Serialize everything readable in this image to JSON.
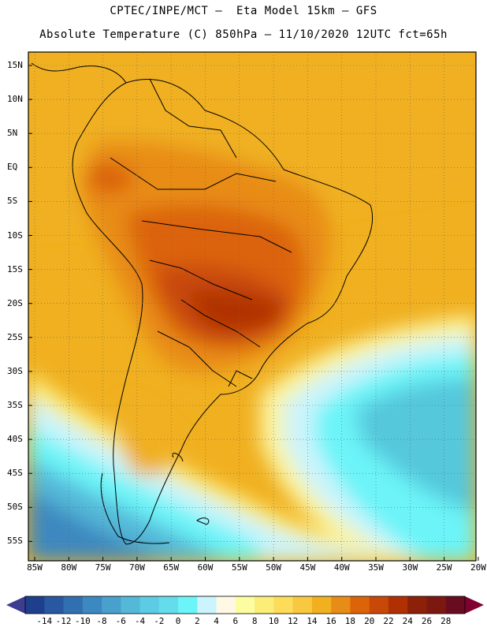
{
  "header": {
    "line1": "CPTEC/INPE/MCT –  Eta Model 15km – GFS",
    "line2": "Absolute Temperature (C) 850hPa – 11/10/2020 12UTC fct=65h"
  },
  "map": {
    "lat_labels": [
      "15N",
      "10N",
      "5N",
      "EQ",
      "5S",
      "10S",
      "15S",
      "20S",
      "25S",
      "30S",
      "35S",
      "40S",
      "45S",
      "50S",
      "55S"
    ],
    "lon_labels": [
      "85W",
      "80W",
      "75W",
      "70W",
      "65W",
      "60W",
      "55W",
      "50W",
      "45W",
      "40W",
      "35W",
      "30W",
      "25W",
      "20W"
    ]
  },
  "colorbar": {
    "labels": [
      "-14",
      "-12",
      "-10",
      "-8",
      "-6",
      "-4",
      "-2",
      "0",
      "2",
      "4",
      "6",
      "8",
      "10",
      "12",
      "14",
      "16",
      "18",
      "20",
      "22",
      "24",
      "26",
      "28"
    ],
    "colors": [
      "#1e3f8c",
      "#2858a0",
      "#3070b0",
      "#3c88c0",
      "#48a0cc",
      "#54b8d8",
      "#5ccce4",
      "#64dcec",
      "#6cf4f8",
      "#ccf4fc",
      "#fff8e4",
      "#fcfca0",
      "#fcec78",
      "#fcdc58",
      "#f8c840",
      "#f0b020",
      "#e88c18",
      "#dc6408",
      "#c84808",
      "#b03004",
      "#8c2008",
      "#7c1810",
      "#680c20"
    ],
    "under_color": "#3c3c90",
    "over_color": "#800030"
  }
}
